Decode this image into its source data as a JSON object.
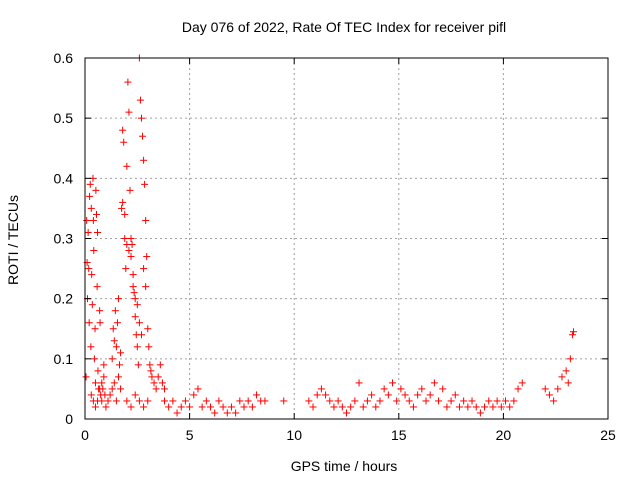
{
  "chart_data": {
    "type": "scatter",
    "title": "Day 076 of 2022, Rate Of TEC Index for receiver pifl",
    "xlabel": "GPS time / hours",
    "ylabel": "ROTI / TECUs",
    "xlim": [
      0,
      25
    ],
    "ylim": [
      0,
      0.6
    ],
    "x_ticks": [
      0,
      5,
      10,
      15,
      20,
      25
    ],
    "y_ticks": [
      0,
      0.1,
      0.2,
      0.3,
      0.4,
      0.5,
      0.6
    ],
    "x_tick_labels": [
      "0",
      "5",
      "10",
      "15",
      "20",
      "25"
    ],
    "y_tick_labels": [
      "0",
      "0.1",
      "0.2",
      "0.3",
      "0.4",
      "0.5",
      "0.6"
    ],
    "grid": true,
    "marker": "+",
    "color": "#ff0000",
    "series": [
      {
        "points": [
          [
            0.05,
            0.07
          ],
          [
            0.08,
            0.33
          ],
          [
            0.1,
            0.26
          ],
          [
            0.12,
            0.2
          ],
          [
            0.15,
            0.31
          ],
          [
            0.18,
            0.25
          ],
          [
            0.2,
            0.16
          ],
          [
            0.22,
            0.37
          ],
          [
            0.25,
            0.39
          ],
          [
            0.28,
            0.12
          ],
          [
            0.3,
            0.35
          ],
          [
            0.32,
            0.24
          ],
          [
            0.35,
            0.19
          ],
          [
            0.38,
            0.4
          ],
          [
            0.4,
            0.33
          ],
          [
            0.42,
            0.28
          ],
          [
            0.45,
            0.1
          ],
          [
            0.48,
            0.15
          ],
          [
            0.5,
            0.06
          ],
          [
            0.52,
            0.38
          ],
          [
            0.55,
            0.34
          ],
          [
            0.58,
            0.22
          ],
          [
            0.6,
            0.31
          ],
          [
            0.62,
            0.08
          ],
          [
            0.65,
            0.05
          ],
          [
            0.7,
            0.18
          ],
          [
            0.72,
            0.16
          ],
          [
            0.75,
            0.04
          ],
          [
            0.8,
            0.03
          ],
          [
            0.85,
            0.05
          ],
          [
            0.9,
            0.09
          ],
          [
            0.95,
            0.04
          ],
          [
            0.3,
            0.04
          ],
          [
            0.4,
            0.03
          ],
          [
            0.5,
            0.02
          ],
          [
            0.6,
            0.03
          ],
          [
            0.7,
            0.05
          ],
          [
            0.8,
            0.06
          ],
          [
            0.9,
            0.07
          ],
          [
            1.0,
            0.02
          ],
          [
            1.1,
            0.03
          ],
          [
            1.2,
            0.04
          ],
          [
            1.3,
            0.05
          ],
          [
            1.4,
            0.06
          ],
          [
            1.5,
            0.03
          ],
          [
            1.3,
            0.1
          ],
          [
            1.35,
            0.15
          ],
          [
            1.4,
            0.13
          ],
          [
            1.45,
            0.18
          ],
          [
            1.5,
            0.12
          ],
          [
            1.55,
            0.16
          ],
          [
            1.6,
            0.2
          ],
          [
            1.65,
            0.09
          ],
          [
            1.7,
            0.11
          ],
          [
            1.75,
            0.35
          ],
          [
            1.8,
            0.48
          ],
          [
            1.85,
            0.46
          ],
          [
            1.9,
            0.3
          ],
          [
            1.95,
            0.25
          ],
          [
            2.0,
            0.42
          ],
          [
            2.05,
            0.56
          ],
          [
            2.1,
            0.51
          ],
          [
            2.15,
            0.38
          ],
          [
            2.2,
            0.3
          ],
          [
            2.25,
            0.29
          ],
          [
            2.3,
            0.24
          ],
          [
            2.35,
            0.21
          ],
          [
            2.4,
            0.17
          ],
          [
            2.45,
            0.14
          ],
          [
            2.5,
            0.12
          ],
          [
            2.55,
            0.09
          ],
          [
            2.6,
            0.6
          ],
          [
            2.65,
            0.53
          ],
          [
            2.7,
            0.5
          ],
          [
            2.75,
            0.47
          ],
          [
            2.8,
            0.43
          ],
          [
            2.85,
            0.39
          ],
          [
            2.9,
            0.33
          ],
          [
            2.95,
            0.27
          ],
          [
            3.0,
            0.15
          ],
          [
            3.05,
            0.12
          ],
          [
            3.1,
            0.09
          ],
          [
            3.15,
            0.08
          ],
          [
            3.2,
            0.07
          ],
          [
            3.3,
            0.06
          ],
          [
            3.4,
            0.05
          ],
          [
            3.5,
            0.07
          ],
          [
            3.6,
            0.09
          ],
          [
            3.7,
            0.06
          ],
          [
            3.8,
            0.05
          ],
          [
            1.8,
            0.36
          ],
          [
            1.9,
            0.34
          ],
          [
            2.0,
            0.29
          ],
          [
            2.1,
            0.28
          ],
          [
            2.2,
            0.27
          ],
          [
            2.3,
            0.22
          ],
          [
            2.4,
            0.2
          ],
          [
            2.5,
            0.19
          ],
          [
            2.6,
            0.16
          ],
          [
            2.7,
            0.14
          ],
          [
            2.8,
            0.25
          ],
          [
            2.9,
            0.22
          ],
          [
            1.6,
            0.07
          ],
          [
            1.7,
            0.05
          ],
          [
            2.0,
            0.03
          ],
          [
            2.2,
            0.02
          ],
          [
            2.4,
            0.04
          ],
          [
            2.6,
            0.03
          ],
          [
            2.8,
            0.02
          ],
          [
            3.0,
            0.03
          ],
          [
            3.8,
            0.03
          ],
          [
            4.0,
            0.02
          ],
          [
            4.2,
            0.03
          ],
          [
            4.4,
            0.01
          ],
          [
            4.6,
            0.02
          ],
          [
            4.8,
            0.03
          ],
          [
            5.0,
            0.02
          ],
          [
            5.2,
            0.04
          ],
          [
            5.4,
            0.05
          ],
          [
            5.6,
            0.02
          ],
          [
            5.8,
            0.03
          ],
          [
            6.0,
            0.02
          ],
          [
            6.2,
            0.01
          ],
          [
            6.4,
            0.03
          ],
          [
            6.6,
            0.02
          ],
          [
            6.8,
            0.01
          ],
          [
            7.0,
            0.02
          ],
          [
            7.2,
            0.01
          ],
          [
            7.4,
            0.03
          ],
          [
            7.6,
            0.02
          ],
          [
            7.8,
            0.03
          ],
          [
            8.0,
            0.02
          ],
          [
            8.2,
            0.04
          ],
          [
            8.4,
            0.03
          ],
          [
            8.6,
            0.03
          ],
          [
            9.5,
            0.03
          ],
          [
            10.7,
            0.03
          ],
          [
            10.9,
            0.02
          ],
          [
            11.1,
            0.04
          ],
          [
            11.3,
            0.05
          ],
          [
            11.5,
            0.04
          ],
          [
            11.7,
            0.03
          ],
          [
            11.9,
            0.02
          ],
          [
            12.1,
            0.03
          ],
          [
            12.3,
            0.02
          ],
          [
            12.5,
            0.01
          ],
          [
            12.7,
            0.02
          ],
          [
            12.9,
            0.03
          ],
          [
            13.1,
            0.06
          ],
          [
            13.3,
            0.02
          ],
          [
            13.5,
            0.03
          ],
          [
            13.7,
            0.04
          ],
          [
            13.9,
            0.02
          ],
          [
            14.1,
            0.03
          ],
          [
            14.3,
            0.05
          ],
          [
            14.5,
            0.04
          ],
          [
            14.7,
            0.06
          ],
          [
            14.9,
            0.03
          ],
          [
            15.1,
            0.05
          ],
          [
            15.3,
            0.04
          ],
          [
            15.5,
            0.03
          ],
          [
            15.7,
            0.02
          ],
          [
            15.9,
            0.04
          ],
          [
            16.1,
            0.05
          ],
          [
            16.3,
            0.03
          ],
          [
            16.5,
            0.04
          ],
          [
            16.7,
            0.06
          ],
          [
            16.9,
            0.03
          ],
          [
            17.1,
            0.05
          ],
          [
            17.3,
            0.02
          ],
          [
            17.5,
            0.03
          ],
          [
            17.7,
            0.04
          ],
          [
            17.9,
            0.02
          ],
          [
            18.1,
            0.03
          ],
          [
            18.3,
            0.02
          ],
          [
            18.5,
            0.03
          ],
          [
            18.7,
            0.02
          ],
          [
            18.9,
            0.01
          ],
          [
            19.1,
            0.02
          ],
          [
            19.3,
            0.03
          ],
          [
            19.5,
            0.02
          ],
          [
            19.7,
            0.03
          ],
          [
            19.9,
            0.02
          ],
          [
            20.1,
            0.03
          ],
          [
            20.3,
            0.02
          ],
          [
            20.5,
            0.03
          ],
          [
            20.7,
            0.05
          ],
          [
            20.9,
            0.06
          ],
          [
            22.0,
            0.05
          ],
          [
            22.2,
            0.04
          ],
          [
            22.4,
            0.03
          ],
          [
            22.6,
            0.05
          ],
          [
            22.8,
            0.07
          ],
          [
            23.0,
            0.08
          ],
          [
            23.1,
            0.06
          ],
          [
            23.2,
            0.1
          ],
          [
            23.3,
            0.14
          ],
          [
            23.35,
            0.145
          ]
        ]
      }
    ]
  }
}
